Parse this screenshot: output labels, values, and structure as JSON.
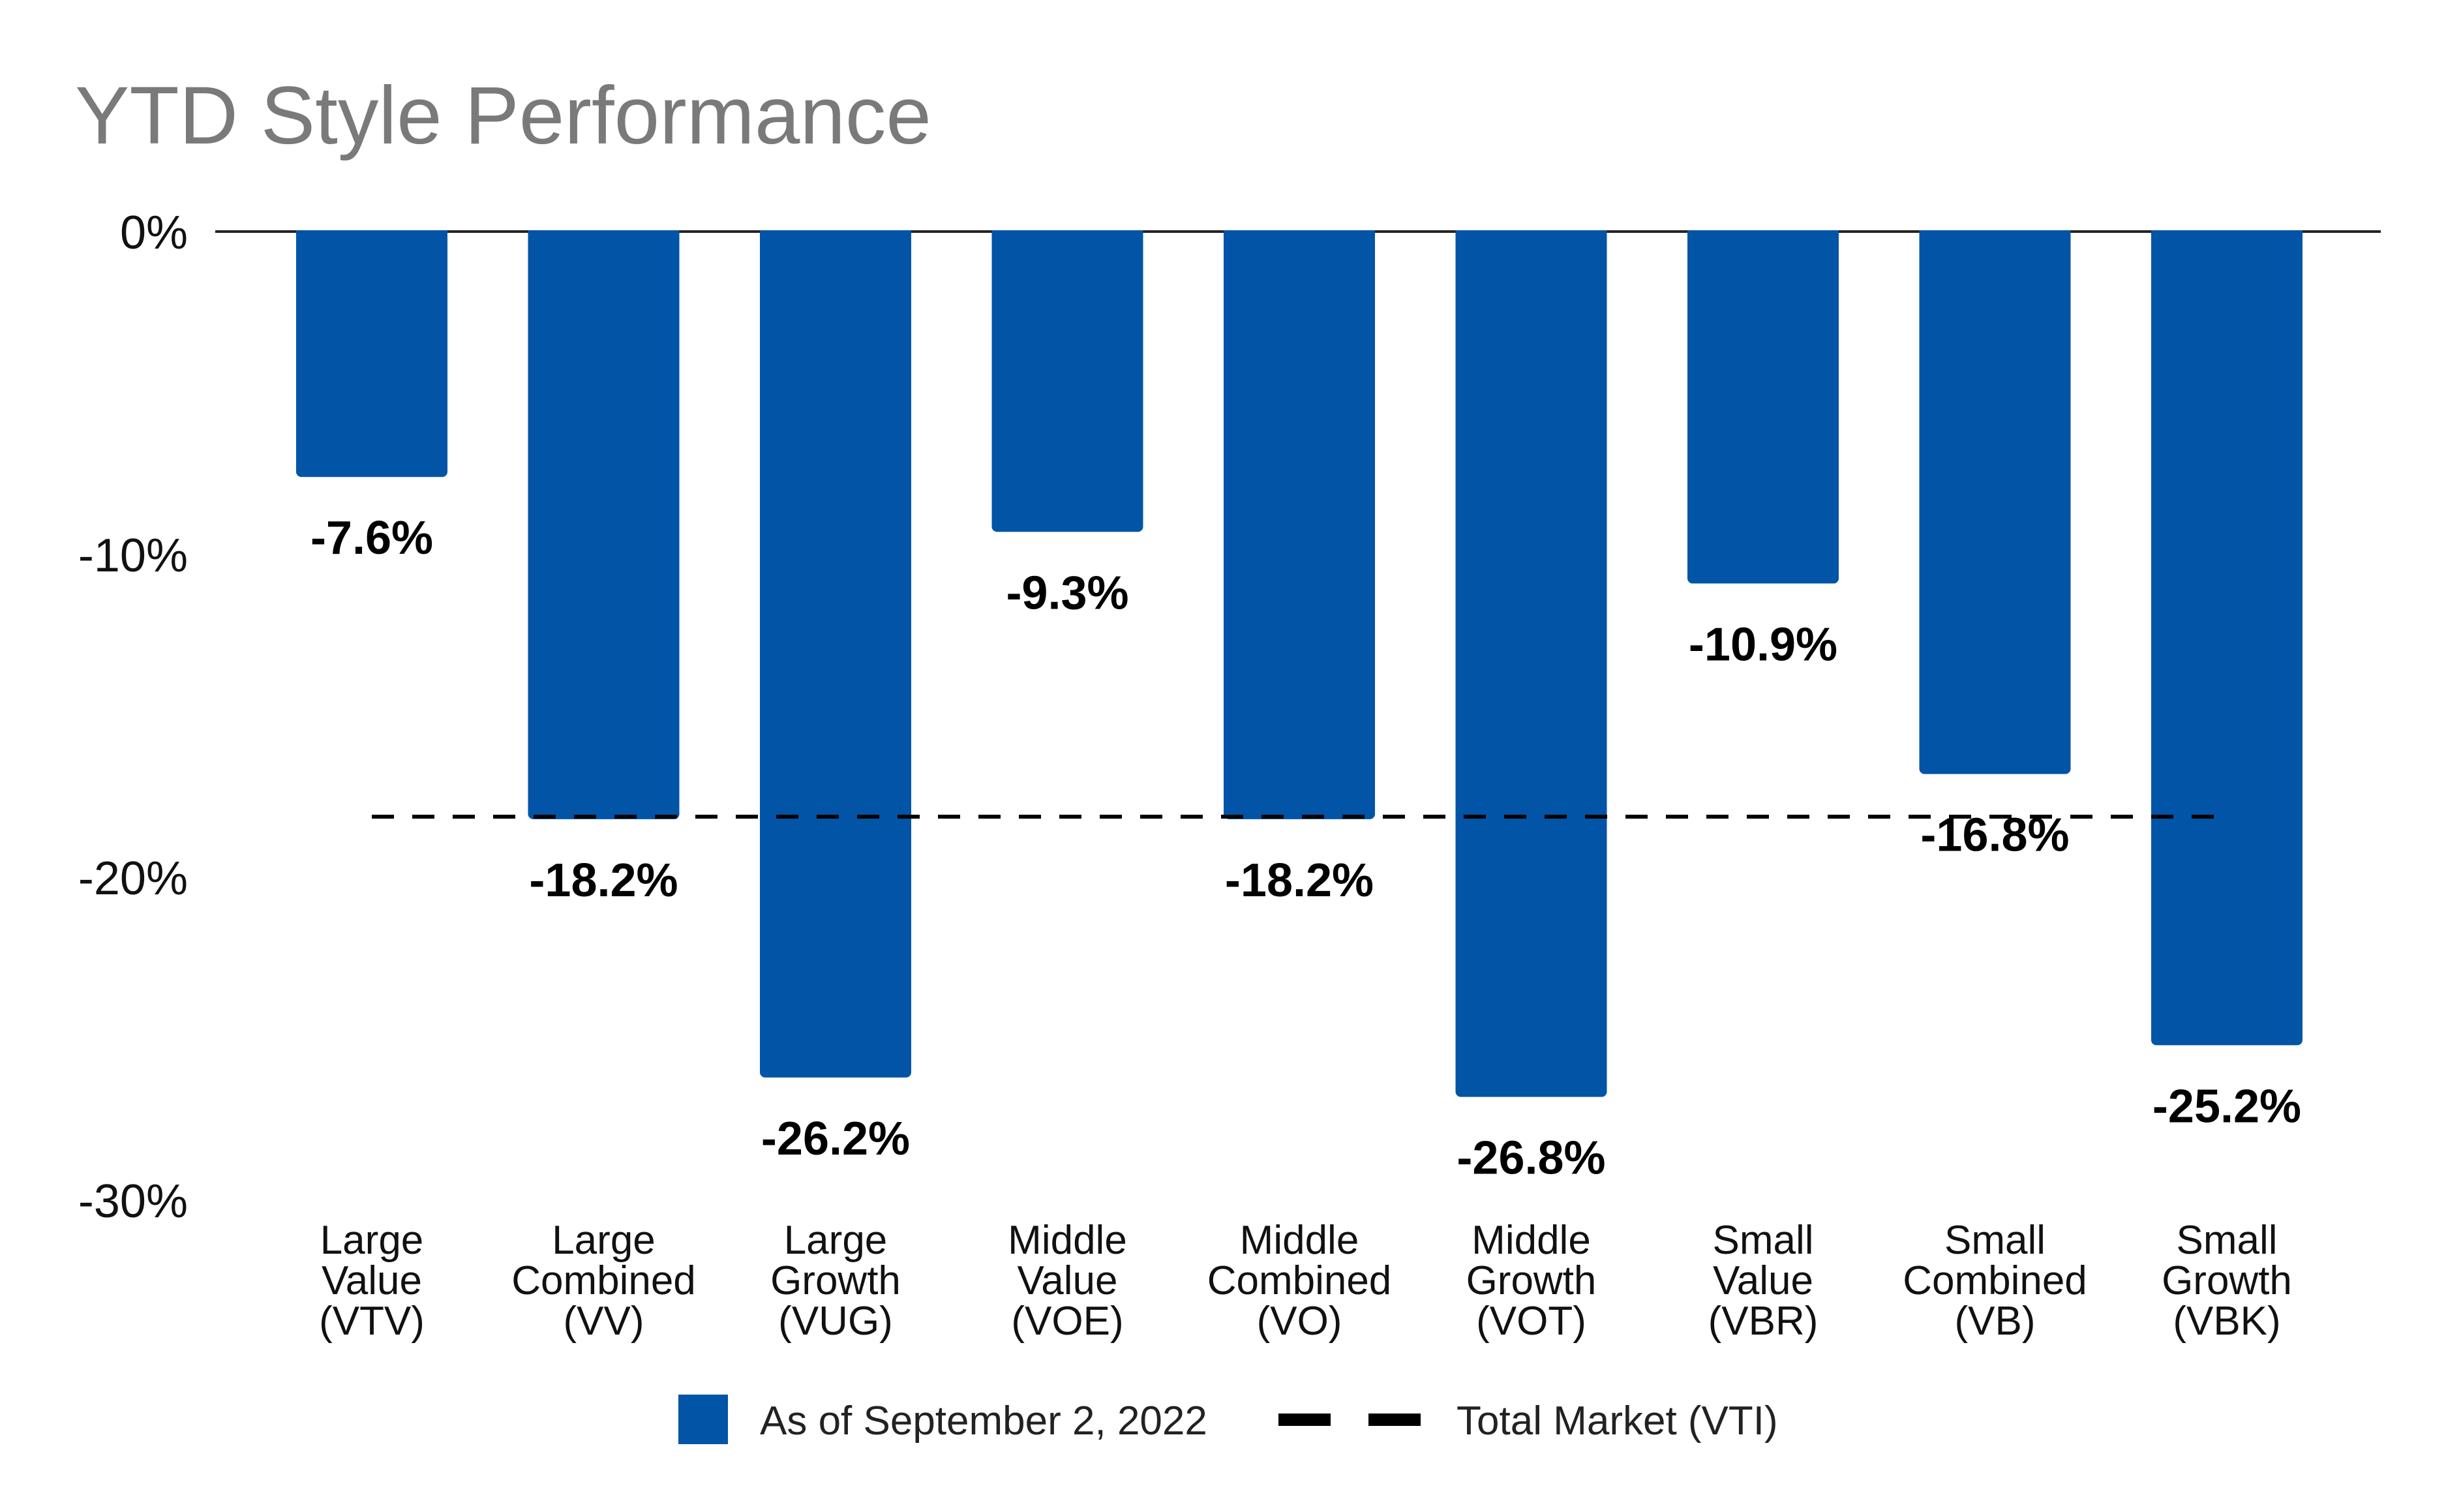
{
  "chart_data": {
    "type": "bar",
    "title": "YTD Style Performance",
    "categories": [
      [
        "Large",
        "Value",
        "(VTV)"
      ],
      [
        "Large",
        "Combined",
        "(VV)"
      ],
      [
        "Large",
        "Growth",
        "(VUG)"
      ],
      [
        "Middle",
        "Value",
        "(VOE)"
      ],
      [
        "Middle",
        "Combined",
        "(VO)"
      ],
      [
        "Middle",
        "Growth",
        "(VOT)"
      ],
      [
        "Small",
        "Value",
        "(VBR)"
      ],
      [
        "Small",
        "Combined",
        "(VB)"
      ],
      [
        "Small",
        "Growth",
        "(VBK)"
      ]
    ],
    "series": [
      {
        "name": "As of September 2, 2022",
        "color": "#0254a6",
        "values": [
          -7.6,
          -18.2,
          -26.2,
          -9.3,
          -18.2,
          -26.8,
          -10.9,
          -16.8,
          -25.2
        ]
      }
    ],
    "data_labels": [
      "-7.6%",
      "-18.2%",
      "-26.2%",
      "-9.3%",
      "-18.2%",
      "-26.8%",
      "-10.9%",
      "-16.8%",
      "-25.2%"
    ],
    "reference_line": {
      "name": "Total Market (VTI)",
      "value": -18.0,
      "style": "dashed",
      "color": "#000000"
    },
    "yticks": [
      0,
      -10,
      -20,
      -30
    ],
    "ytick_labels": [
      "0%",
      "-10%",
      "-20%",
      "-30%"
    ],
    "ylim": [
      -30,
      0
    ],
    "xlabel": "",
    "ylabel": "",
    "grid": false,
    "legend_position": "bottom-center"
  }
}
